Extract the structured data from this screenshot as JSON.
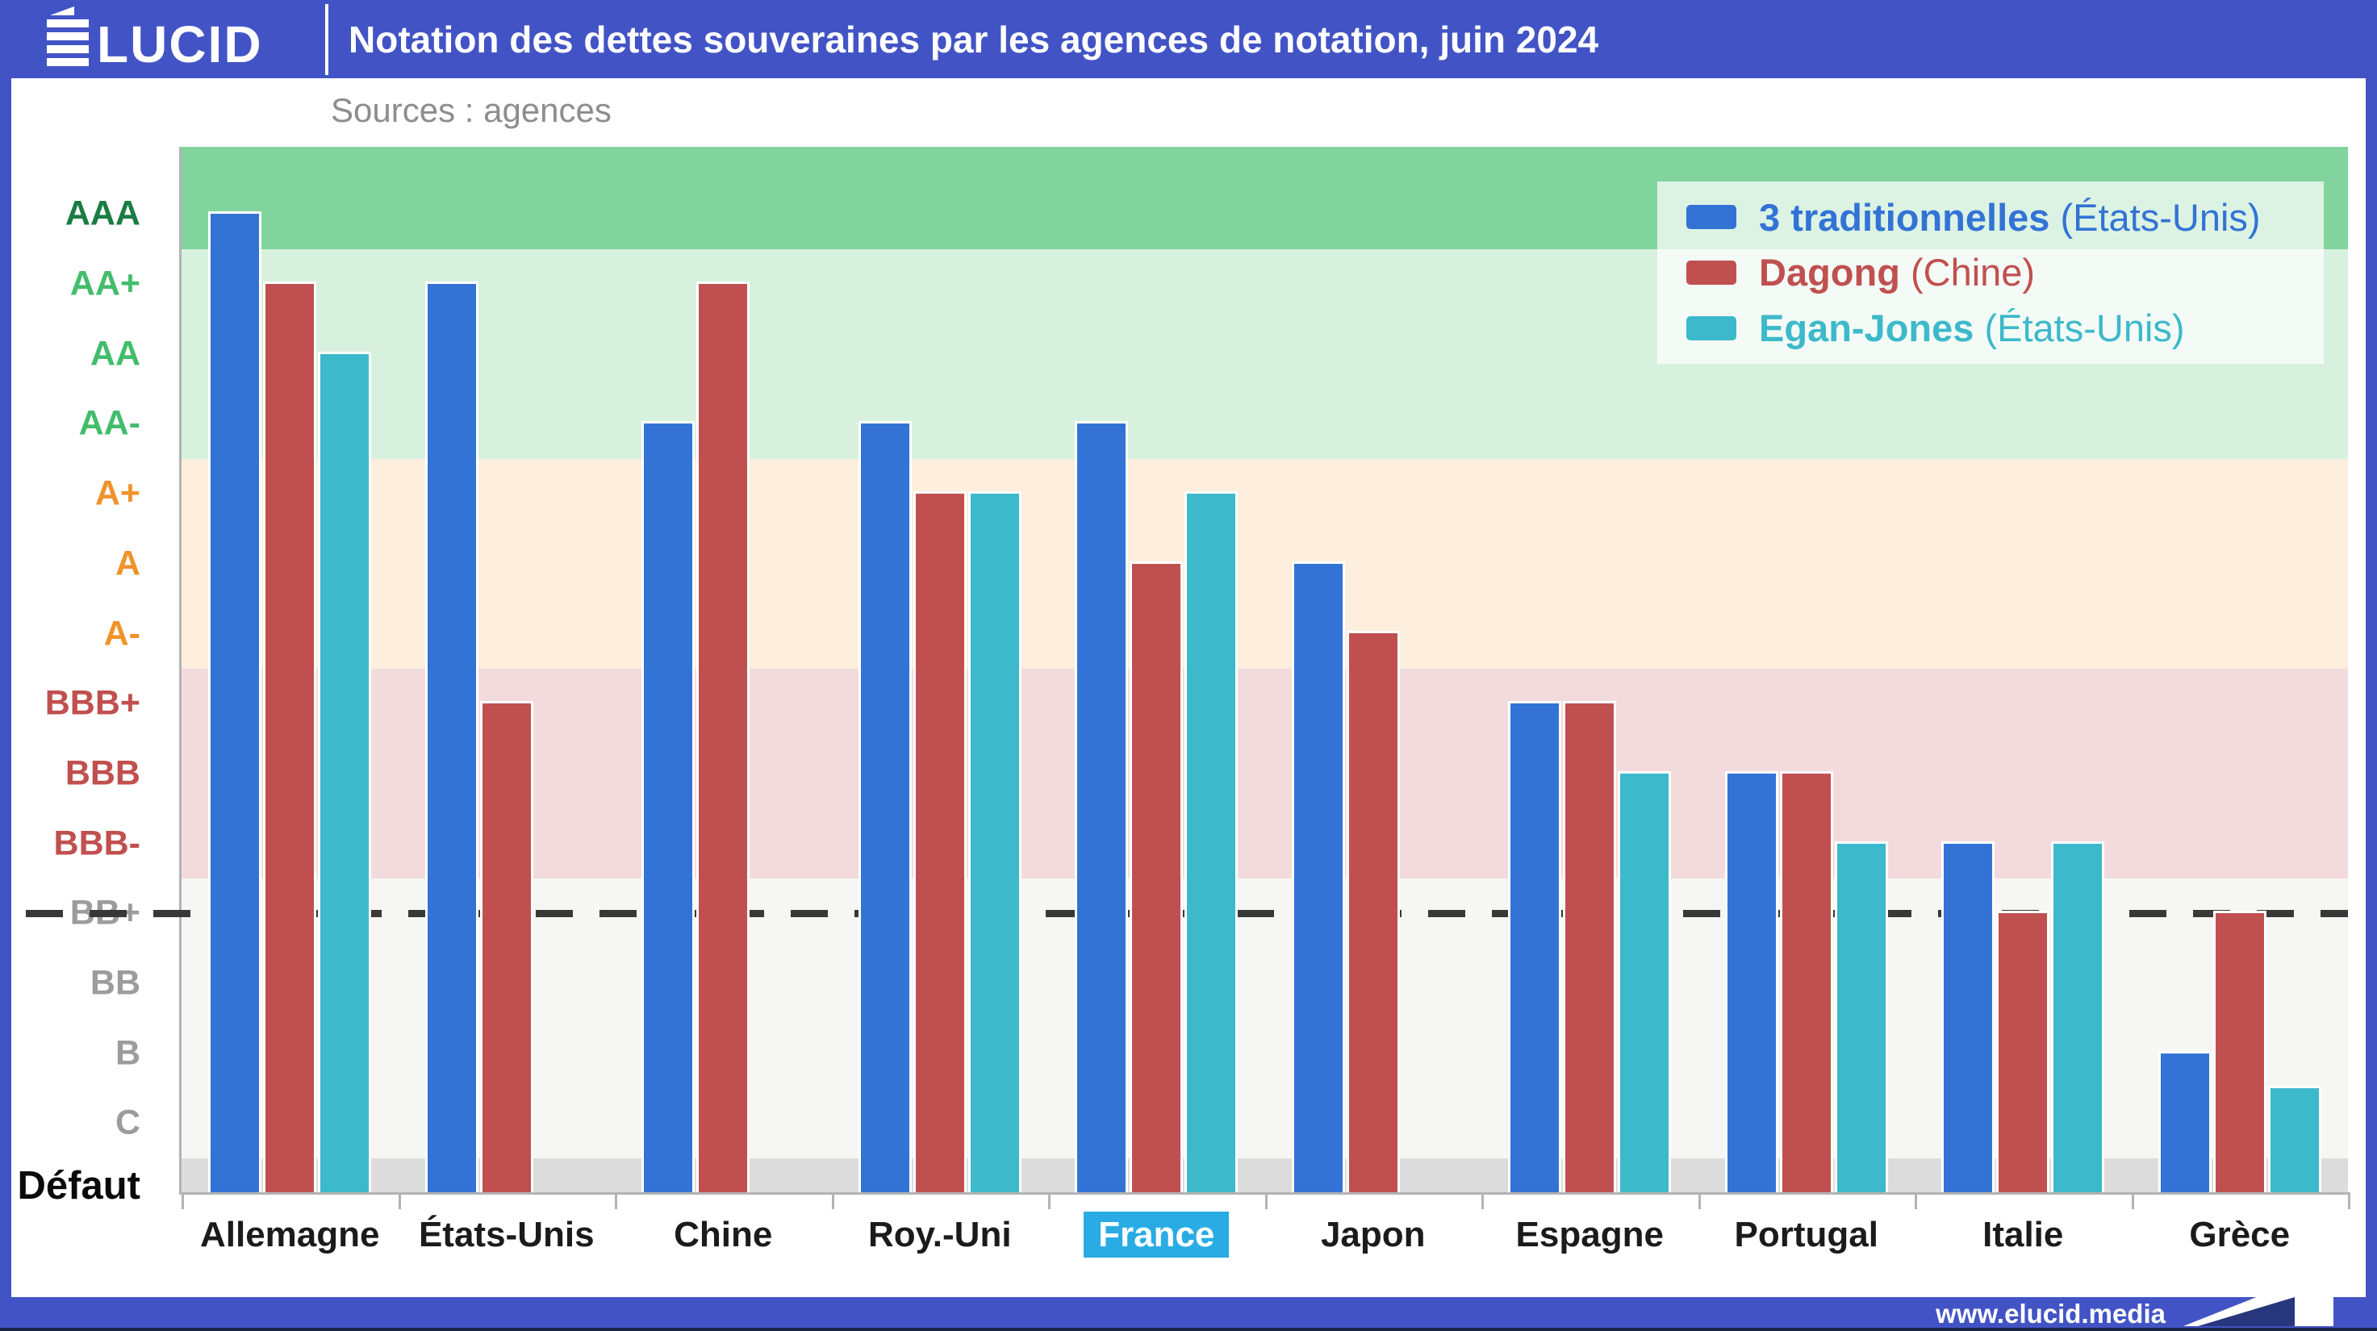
{
  "header": {
    "logo_text": "ÉLUCID",
    "logo_word_rest": "LUCID",
    "title": "Notation des dettes souveraines par les agences de notation, juin 2024"
  },
  "sources": "Sources : agences",
  "footer": {
    "url": "www.elucid.media"
  },
  "colors": {
    "header_blue": "#4254c5",
    "footer_dark_line": "#1c2446",
    "content_bg": "#ffffff",
    "axis_gray": "#b3b3b3",
    "dashed_line": "#383838",
    "france_highlight": "#29ace3",
    "band_aaa": "#81d49e",
    "band_aa": "#d8f1df",
    "band_a": "#fdeedd",
    "band_bbb": "#f3dbdd",
    "band_speculative": "#f6f6f5",
    "band_default": "#dcdcdc",
    "ylabel_aaa": "#1a7c42",
    "ylabel_aa": "#43bd6c",
    "ylabel_a": "#f0932b",
    "ylabel_bbb": "#c0504f",
    "ylabel_speculative": "#9c9c9c",
    "ylabel_default": "#0a0a0a"
  },
  "chart_data": {
    "type": "bar",
    "variant": "grouped_bar_rating_scale",
    "title": "Notation des dettes souveraines par les agences de notation, juin 2024",
    "categories": [
      "Allemagne",
      "États-Unis",
      "Chine",
      "Roy.-Uni",
      "France",
      "Japon",
      "Espagne",
      "Portugal",
      "Italie",
      "Grèce"
    ],
    "highlighted_category": "France",
    "y_levels_top_to_bottom": [
      "AAA",
      "AA+",
      "AA",
      "AA-",
      "A+",
      "A",
      "A-",
      "BBB+",
      "BBB",
      "BBB-",
      "BB+",
      "BB",
      "B",
      "C",
      "Défaut"
    ],
    "investment_grade_line_between": [
      "BBB-",
      "BB+"
    ],
    "grid": false,
    "legend_position": "top-right",
    "series": [
      {
        "name": "3 traditionnelles",
        "origin": "(États-Unis)",
        "color": "#3273d5",
        "ratings": [
          "AAA",
          "AA+",
          "AA-",
          "AA-",
          "AA-",
          "A",
          "BBB+",
          "BBB",
          "BBB-",
          "B"
        ],
        "level_indices": [
          0,
          1,
          3,
          3,
          3,
          5,
          7,
          8,
          9,
          12
        ]
      },
      {
        "name": "Dagong",
        "origin": "(Chine)",
        "color": "#c0504f",
        "ratings": [
          "AA+",
          "BBB+",
          "AA+",
          "A+",
          "A",
          "A-",
          "BBB+",
          "BBB",
          "BB+",
          "BB+"
        ],
        "level_indices": [
          1,
          7,
          1,
          4,
          5,
          6,
          7,
          8,
          10,
          10
        ]
      },
      {
        "name": "Egan-Jones",
        "origin": "(États-Unis)",
        "color": "#3cb9ca",
        "ratings": [
          "AA",
          null,
          null,
          "A+",
          "A+",
          null,
          "BBB",
          "BBB-",
          "BBB-",
          "CCC"
        ],
        "level_indices": [
          2,
          null,
          null,
          4,
          4,
          null,
          8,
          9,
          9,
          12.5
        ]
      }
    ]
  }
}
